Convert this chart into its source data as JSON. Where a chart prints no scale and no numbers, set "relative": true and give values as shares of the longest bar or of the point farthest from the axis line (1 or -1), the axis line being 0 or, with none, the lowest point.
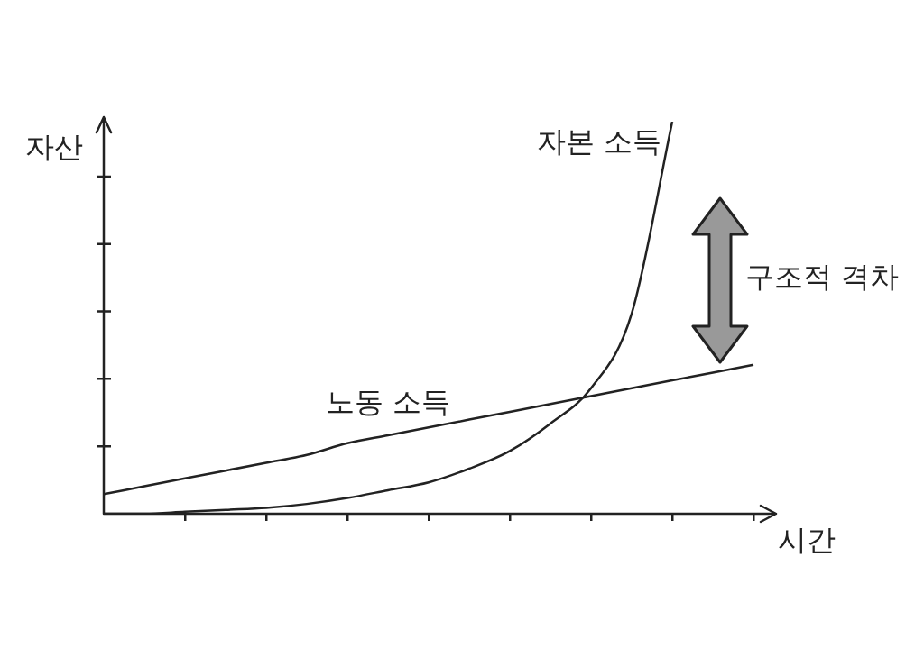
{
  "chart_data": {
    "type": "line",
    "relative": true,
    "xlabel": "시간",
    "ylabel": "자산",
    "categories": [
      null,
      null,
      null,
      null,
      null,
      null,
      null,
      null,
      null,
      null,
      null,
      null,
      null,
      null,
      null,
      null,
      null
    ],
    "series": [
      {
        "name": "자본 소득",
        "color": "#222222",
        "values": [
          0,
          0,
          0.005,
          0.01,
          0.015,
          0.025,
          0.04,
          0.06,
          0.08,
          0.115,
          0.16,
          0.23,
          0.32,
          0.51,
          1,
          null,
          null
        ]
      },
      {
        "name": "노동 소득",
        "color": "#222222",
        "values": [
          0.05,
          0.07,
          0.09,
          0.11,
          0.13,
          0.15,
          0.18,
          0.2,
          0.22,
          0.24,
          0.26,
          0.28,
          0.3,
          0.32,
          0.34,
          0.36,
          0.38
        ]
      }
    ],
    "annotations": [
      "구조적 격차"
    ],
    "legend": false,
    "grid": false,
    "marker": "none",
    "line_style": "solid"
  }
}
